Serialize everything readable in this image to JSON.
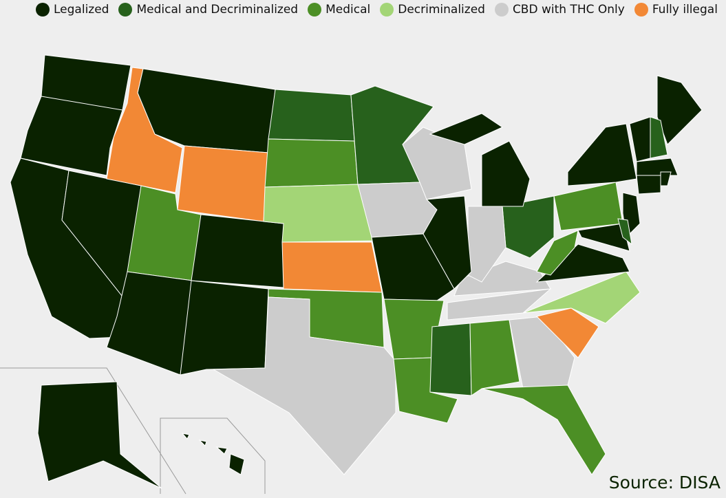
{
  "legend": {
    "items": [
      {
        "label": "Legalized",
        "color": "#0a2200"
      },
      {
        "label": "Medical and Decriminalized",
        "color": "#27611c"
      },
      {
        "label": "Medical",
        "color": "#4c8f25"
      },
      {
        "label": "Decriminalized",
        "color": "#a3d576"
      },
      {
        "label": "CBD with THC Only",
        "color": "#cccccc"
      },
      {
        "label": "Fully illegal",
        "color": "#f28835"
      }
    ]
  },
  "source": "Source: DISA"
}
